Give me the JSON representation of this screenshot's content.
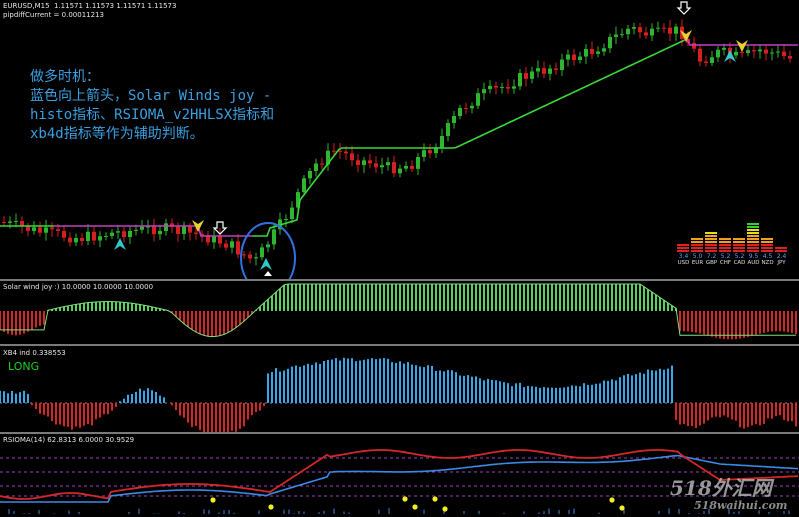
{
  "main": {
    "symbol_line": "EURUSD,M15  1.11571 1.11573 1.11571 1.11573",
    "pip_line": "pipdiffCurrent = 0.00011213",
    "note_lines": [
      "做多时机：",
      "蓝色向上箭头，Solar Winds joy -",
      "histo指标、RSIOMA_v2HHLSX指标和",
      "xb4d指标等作为辅助判断。"
    ],
    "note_color": "#3aa0e0",
    "strength_meter": {
      "values": [
        "3.4",
        "5.0",
        "7.2",
        "5.2",
        "5.2",
        "9.5",
        "4.5",
        "2.4"
      ],
      "currencies": [
        "USD",
        "EUR",
        "GBP",
        "CHF",
        "CAD",
        "AUD",
        "NZD",
        "JPY"
      ]
    },
    "colors": {
      "bull": "#2fb52f",
      "bear": "#d42020",
      "trail_up": "#39d939",
      "trail_down": "#c040c0",
      "arrow_up": "#30c8c8",
      "arrow_down": "#e8d030",
      "circle": "#3070e0"
    }
  },
  "solar_pane": {
    "label": "Solar wind joy :) 10.0000 10.0000 10.0000",
    "colors": {
      "positive": "#5cd05c",
      "negative": "#d42828"
    }
  },
  "xb4_pane": {
    "label": "XB4 ind 0.338553",
    "signal": "LONG",
    "colors": {
      "positive": "#3aa8e8",
      "negative": "#d42828",
      "signal": "#22d022"
    }
  },
  "rsioma_pane": {
    "label": "RSIOMA(14) 62.8313 6.0000 30.9529",
    "colors": {
      "rsioma": "#d42828",
      "ma": "#3a8ae8",
      "levels": "#a040c0",
      "dots": "#f0f020"
    }
  },
  "watermark": {
    "line1": "518外汇网",
    "line2": "518waihui.com"
  }
}
